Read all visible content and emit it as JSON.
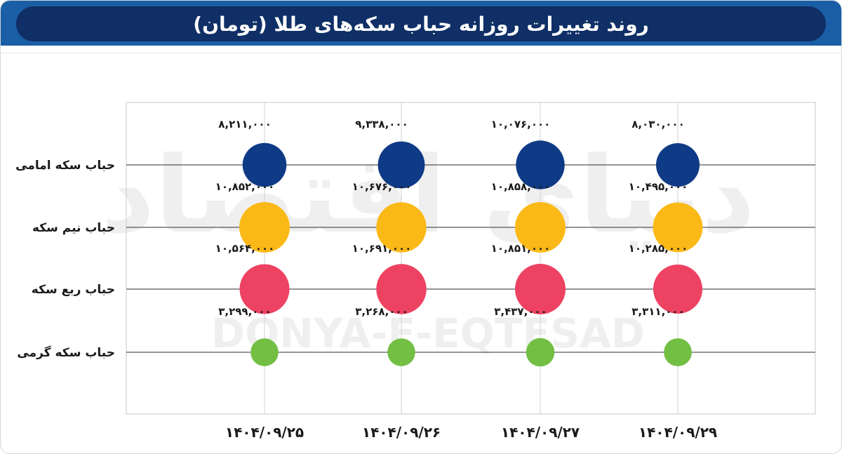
{
  "title": "روند تغییرات روزانه حباب سکه‌های طلا (تومان)",
  "watermark": {
    "fa": "دنیای اقتصاد",
    "en": "DONYA-E-EQTESAD"
  },
  "colors": {
    "header_bg": "#1a5ea5",
    "header_pill": "#0f2f66"
  },
  "chart_data": {
    "type": "scatter",
    "x": [
      "۱۴۰۴/۰۹/۲۵",
      "۱۴۰۴/۰۹/۲۶",
      "۱۴۰۴/۰۹/۲۷",
      "۱۴۰۴/۰۹/۲۹"
    ],
    "series": [
      {
        "name": "حباب سکه امامی",
        "color": "#0f3a85",
        "values": [
          8211000,
          9338000,
          10076000,
          8030000
        ],
        "labels": [
          "۸,۲۱۱,۰۰۰",
          "۹,۳۳۸,۰۰۰",
          "۱۰,۰۷۶,۰۰۰",
          "۸,۰۳۰,۰۰۰"
        ]
      },
      {
        "name": "حباب نیم سکه",
        "color": "#fbb917",
        "values": [
          10852000,
          10676000,
          10858000,
          10495000
        ],
        "labels": [
          "۱۰,۸۵۲,۰۰۰",
          "۱۰,۶۷۶,۰۰۰",
          "۱۰,۸۵۸,۰۰۰",
          "۱۰,۴۹۵,۰۰۰"
        ]
      },
      {
        "name": "حباب ربع سکه",
        "color": "#ee4262",
        "values": [
          10564000,
          10691000,
          10851000,
          10285000
        ],
        "labels": [
          "۱۰,۵۶۴,۰۰۰",
          "۱۰,۶۹۱,۰۰۰",
          "۱۰,۸۵۱,۰۰۰",
          "۱۰,۲۸۵,۰۰۰"
        ]
      },
      {
        "name": "حباب سکه گرمی",
        "color": "#72bf44",
        "values": [
          3299000,
          3268000,
          3437000,
          3311000
        ],
        "labels": [
          "۳,۲۹۹,۰۰۰",
          "۳,۲۶۸,۰۰۰",
          "۳,۴۳۷,۰۰۰",
          "۳,۳۱۱,۰۰۰"
        ]
      }
    ],
    "grid": true,
    "encoding": "bubble area proportional to value"
  }
}
